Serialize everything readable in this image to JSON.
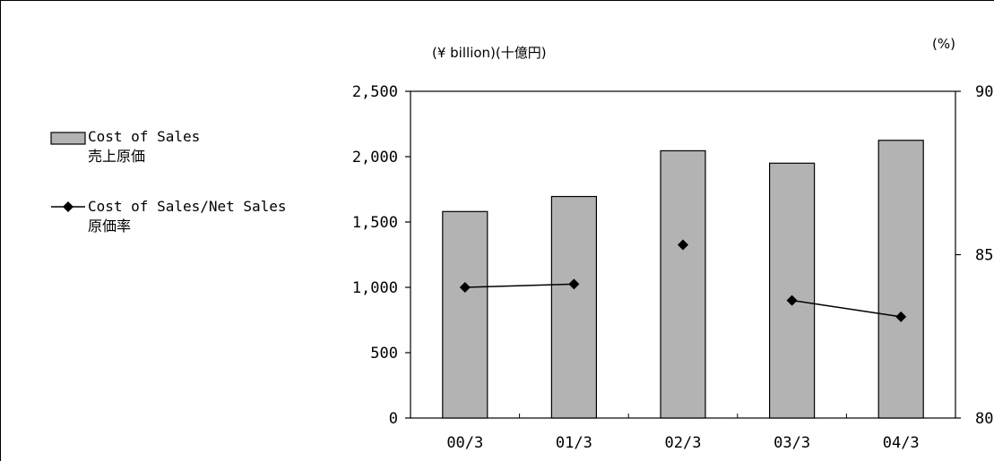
{
  "chart_data": {
    "type": "bar",
    "categories": [
      "00/3",
      "01/3",
      "02/3",
      "03/3",
      "04/3"
    ],
    "series": [
      {
        "name": "Cost of Sales",
        "name_ja": "売上原価",
        "axis": "left",
        "type": "bar",
        "values": [
          1580,
          1695,
          2045,
          1950,
          2125
        ]
      },
      {
        "name": "Cost of Sales/Net Sales",
        "name_ja": "原価率",
        "axis": "right",
        "type": "line",
        "values": [
          84.0,
          84.1,
          85.3,
          83.6,
          83.1
        ],
        "connected_segments": [
          [
            0,
            1
          ],
          [
            3,
            4
          ]
        ]
      }
    ],
    "left_axis": {
      "unit_label": "(¥ billion)(十億円)",
      "ylim": [
        0,
        2500
      ],
      "ticks": [
        "2,500",
        "2,000",
        "1,500",
        "1,000",
        "500",
        "0"
      ]
    },
    "right_axis": {
      "unit_label": "(%)",
      "ylim": [
        80,
        90
      ],
      "ticks": [
        "90",
        "85",
        "80"
      ]
    },
    "colors": {
      "bar_fill": "#b3b3b3",
      "line": "#000000",
      "marker": "#000000"
    },
    "legend_position": "left"
  }
}
